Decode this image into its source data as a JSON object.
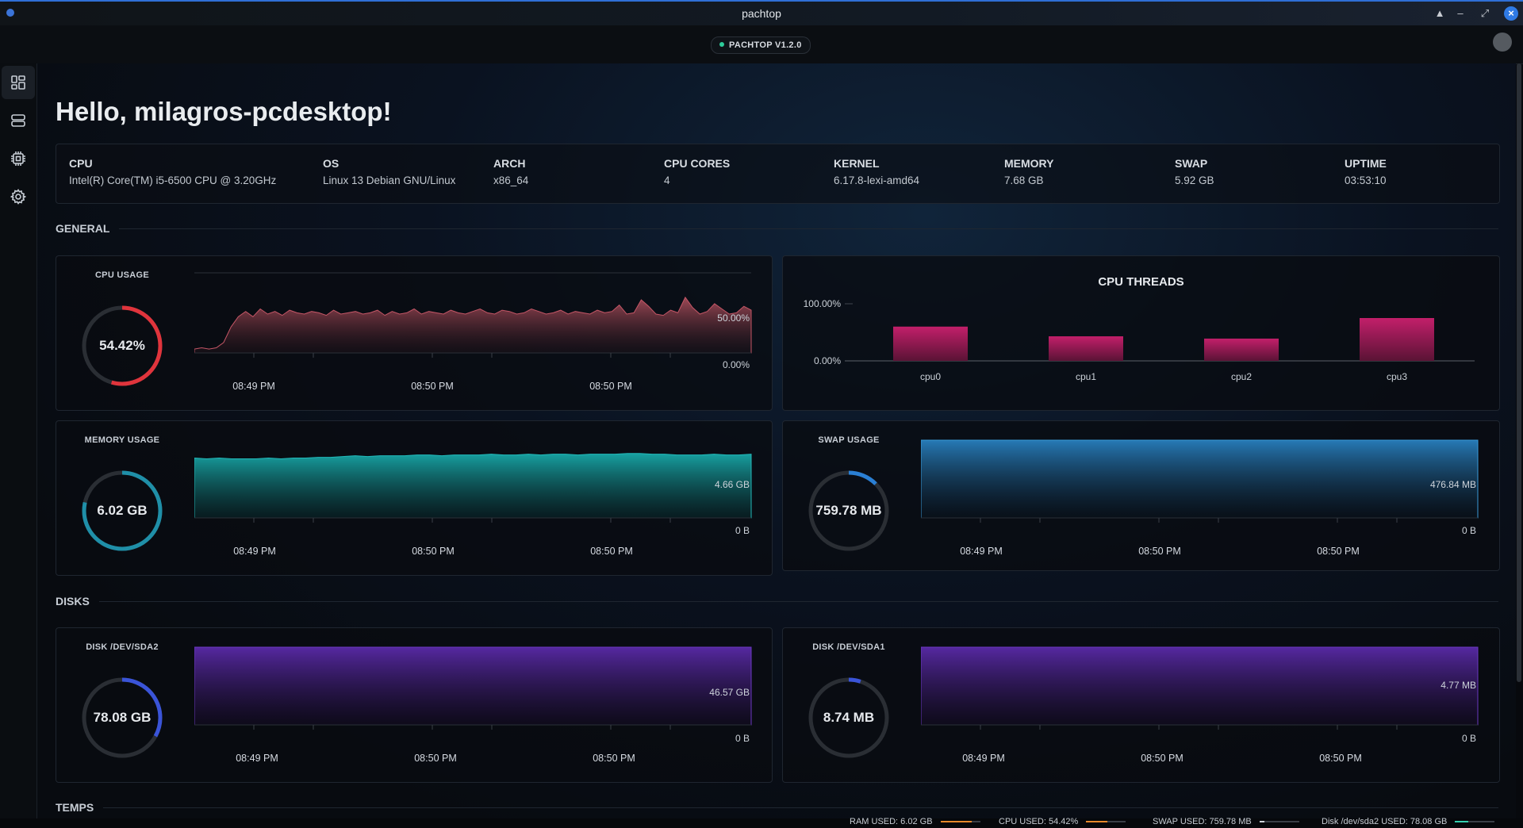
{
  "window": {
    "title": "pachtop"
  },
  "header": {
    "version": "PACHTOP V1.2.0"
  },
  "greeting": "Hello, milagros-pcdesktop!",
  "sysinfo": [
    {
      "key": "CPU",
      "value": "Intel(R) Core(TM) i5-6500 CPU @ 3.20GHz"
    },
    {
      "key": "OS",
      "value": "Linux 13 Debian GNU/Linux"
    },
    {
      "key": "ARCH",
      "value": "x86_64"
    },
    {
      "key": "CPU CORES",
      "value": "4"
    },
    {
      "key": "KERNEL",
      "value": "6.17.8-lexi-amd64"
    },
    {
      "key": "MEMORY",
      "value": "7.68 GB"
    },
    {
      "key": "SWAP",
      "value": "5.92 GB"
    },
    {
      "key": "UPTIME",
      "value": "03:53:10"
    }
  ],
  "sections": {
    "general": "GENERAL",
    "disks": "DISKS",
    "temps": "TEMPS"
  },
  "cards": {
    "cpu": {
      "title": "CPU USAGE",
      "value": "54.42%",
      "fraction": 0.5442,
      "color": "#e0343c",
      "max_label": "50.00%",
      "min_label": "0.00%",
      "time_labels": [
        "08:49 PM",
        "08:50 PM",
        "08:50 PM"
      ],
      "series": [
        3,
        4,
        3,
        4,
        8,
        20,
        28,
        32,
        28,
        34,
        30,
        32,
        29,
        33,
        31,
        30,
        32,
        31,
        29,
        33,
        30,
        31,
        32,
        30,
        31,
        33,
        29,
        32,
        30,
        31,
        34,
        30,
        32,
        31,
        30,
        33,
        31,
        30,
        32,
        34,
        31,
        30,
        33,
        32,
        30,
        31,
        34,
        32,
        30,
        31,
        33,
        30,
        32,
        31,
        30,
        33,
        31,
        32,
        37,
        30,
        31,
        41,
        36,
        30,
        29,
        33,
        31,
        43,
        35,
        30,
        32,
        38,
        34,
        30,
        31,
        36,
        33
      ]
    },
    "threads": {
      "title": "CPU THREADS",
      "y_max_label": "100.00%",
      "y_min_label": "0.00%",
      "categories": [
        "cpu0",
        "cpu1",
        "cpu2",
        "cpu3"
      ],
      "values": [
        60,
        43,
        39,
        75
      ]
    },
    "memory": {
      "title": "MEMORY USAGE",
      "value": "6.02 GB",
      "fraction": 0.784,
      "color": "#1f8fa8",
      "max_label": "4.66 GB",
      "min_label": "0 B",
      "time_labels": [
        "08:49 PM",
        "08:50 PM",
        "08:50 PM"
      ],
      "series": [
        77,
        76,
        77,
        76,
        76,
        76,
        77,
        76,
        77,
        77,
        78,
        78,
        79,
        80,
        79,
        80,
        80,
        80,
        81,
        81,
        80,
        81,
        81,
        81,
        82,
        81,
        81,
        82,
        81,
        82,
        82,
        81,
        82,
        82,
        82,
        83,
        83,
        82,
        82,
        81,
        81,
        81,
        82,
        81,
        81,
        82
      ]
    },
    "swap": {
      "title": "SWAP USAGE",
      "value": "759.78 MB",
      "fraction": 0.125,
      "color": "#2a7fd4",
      "max_label": "476.84 MB",
      "min_label": "0 B",
      "time_labels": [
        "08:49 PM",
        "08:50 PM",
        "08:50 PM"
      ],
      "series": [
        100,
        100,
        100,
        100,
        100,
        100,
        100,
        100,
        100,
        100
      ]
    },
    "disk_sda2": {
      "title": "DISK /DEV/SDA2",
      "value": "78.08 GB",
      "fraction": 0.33,
      "color": "#3a54d8",
      "max_label": "46.57 GB",
      "min_label": "0 B",
      "time_labels": [
        "08:49 PM",
        "08:50 PM",
        "08:50 PM"
      ],
      "series": [
        100,
        100,
        100,
        100,
        100,
        100,
        100,
        100,
        100,
        100
      ]
    },
    "disk_sda1": {
      "title": "DISK /DEV/SDA1",
      "value": "8.74 MB",
      "fraction": 0.05,
      "color": "#3a54d8",
      "max_label": "4.77 MB",
      "min_label": "0 B",
      "time_labels": [
        "08:49 PM",
        "08:50 PM",
        "08:50 PM"
      ],
      "series": [
        100,
        100,
        100,
        100,
        100,
        100,
        100,
        100,
        100,
        100
      ]
    }
  },
  "statusbar": [
    {
      "label": "RAM USED: 6.02 GB",
      "fraction": 0.78,
      "color": "#e8892a"
    },
    {
      "label": "CPU USED: 54.42%",
      "fraction": 0.54,
      "color": "#e8892a"
    },
    {
      "label": "SWAP USED: 759.78 MB",
      "fraction": 0.13,
      "color": "#cfd4da"
    },
    {
      "label": "Disk /dev/sda2 USED: 78.08 GB",
      "fraction": 0.33,
      "color": "#34d0b0"
    }
  ]
}
